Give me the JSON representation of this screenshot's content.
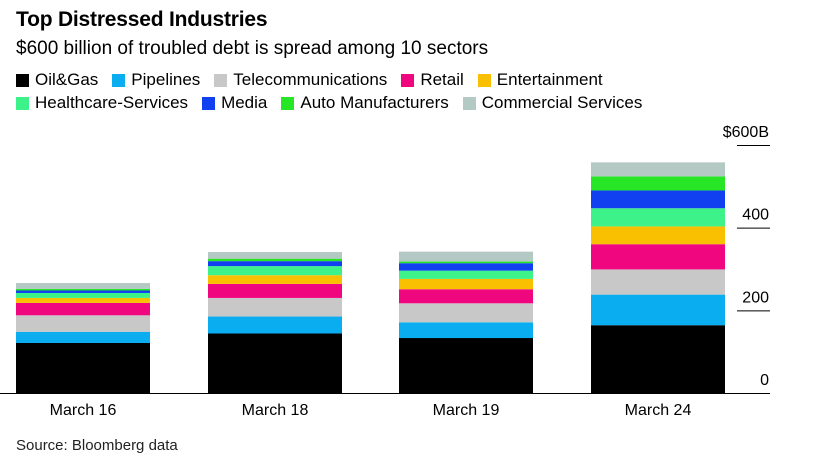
{
  "chart_data": {
    "type": "bar",
    "stacked": true,
    "title": "Top Distressed Industries",
    "subtitle": "$600 billion of troubled debt is spread among 10 sectors",
    "source": "Source: Bloomberg data",
    "categories": [
      "March 16",
      "March 18",
      "March 19",
      "March 24"
    ],
    "ylim": [
      0,
      600
    ],
    "yticks": [
      {
        "value": 0,
        "label": "0"
      },
      {
        "value": 200,
        "label": "200"
      },
      {
        "value": 400,
        "label": "400"
      },
      {
        "value": 600,
        "label": "$600B"
      }
    ],
    "series": [
      {
        "name": "Oil&Gas",
        "color": "#000000",
        "values": [
          121,
          144,
          133,
          164
        ]
      },
      {
        "name": "Pipelines",
        "color": "#0aaef0",
        "values": [
          27,
          41,
          38,
          74
        ]
      },
      {
        "name": "Telecommunications",
        "color": "#c8c8c8",
        "values": [
          40,
          45,
          46,
          61
        ]
      },
      {
        "name": "Retail",
        "color": "#f0077f",
        "values": [
          30,
          34,
          34,
          61
        ]
      },
      {
        "name": "Entertainment",
        "color": "#f8c000",
        "values": [
          12,
          21,
          25,
          43
        ]
      },
      {
        "name": "Healthcare-Services",
        "color": "#3ef28a",
        "values": [
          12,
          22,
          20,
          44
        ]
      },
      {
        "name": "Media",
        "color": "#1040f0",
        "values": [
          6,
          12,
          18,
          43
        ]
      },
      {
        "name": "Auto Manufacturers",
        "color": "#26e626",
        "values": [
          4,
          6,
          4,
          34
        ]
      },
      {
        "name": "Commercial Services",
        "color": "#b4c8c4",
        "values": [
          14,
          16,
          24,
          34
        ]
      }
    ],
    "legend": "top"
  }
}
